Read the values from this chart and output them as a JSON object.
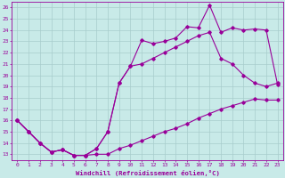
{
  "bg_color": "#c8eae8",
  "grid_color": "#a8cccc",
  "line_color": "#990099",
  "xlabel": "Windchill (Refroidissement éolien,°C)",
  "x_ticks": [
    0,
    1,
    2,
    3,
    4,
    5,
    6,
    7,
    8,
    9,
    10,
    11,
    12,
    13,
    14,
    15,
    16,
    17,
    18,
    19,
    20,
    21,
    22,
    23
  ],
  "y_ticks": [
    13,
    14,
    15,
    16,
    17,
    18,
    19,
    20,
    21,
    22,
    23,
    24,
    25,
    26
  ],
  "xlim": [
    -0.5,
    23.5
  ],
  "ylim": [
    12.5,
    26.5
  ],
  "line_bottom_y": [
    16.0,
    15.0,
    14.0,
    13.2,
    13.4,
    12.9,
    12.9,
    13.0,
    13.0,
    13.5,
    13.8,
    14.2,
    14.6,
    15.0,
    15.3,
    15.7,
    16.2,
    16.6,
    17.0,
    17.3,
    17.6,
    17.9,
    17.8,
    17.8
  ],
  "line_top_y": [
    16.0,
    15.0,
    14.0,
    13.2,
    13.4,
    12.9,
    12.9,
    13.5,
    15.0,
    19.3,
    20.8,
    23.1,
    22.8,
    23.0,
    23.3,
    24.3,
    24.2,
    26.2,
    23.8,
    24.2,
    24.0,
    24.1,
    24.0,
    19.2
  ],
  "line_mid_y": [
    16.0,
    15.0,
    14.0,
    13.2,
    13.4,
    12.9,
    12.9,
    13.5,
    15.0,
    19.3,
    20.8,
    21.0,
    21.5,
    22.0,
    22.5,
    23.0,
    23.5,
    23.8,
    21.5,
    21.0,
    20.0,
    19.3,
    19.0,
    19.3
  ]
}
